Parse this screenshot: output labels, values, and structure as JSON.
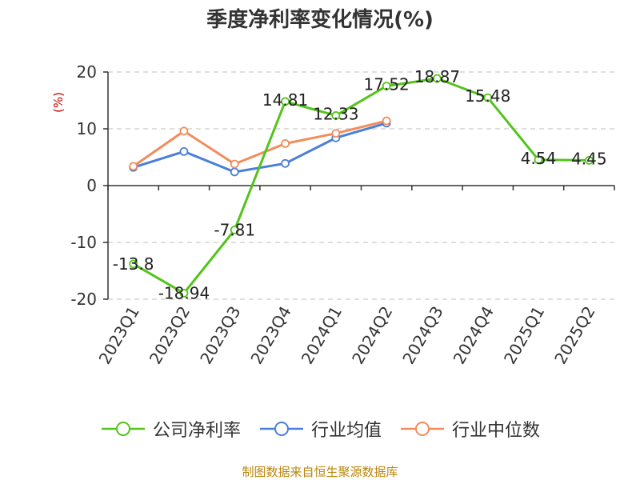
{
  "chart_data": {
    "type": "line",
    "title": "季度净利率变化情况(%)",
    "ylabel": "(%)",
    "categories": [
      "2023Q1",
      "2023Q2",
      "2023Q3",
      "2023Q4",
      "2024Q1",
      "2024Q2",
      "2024Q3",
      "2024Q4",
      "2025Q1",
      "2025Q2"
    ],
    "y_ticks": [
      "20",
      "10",
      "0",
      "-10",
      "-20"
    ],
    "ylim": [
      -20,
      20
    ],
    "grid": true,
    "legend_placement": "bottom",
    "series": [
      {
        "name": "公司净利率",
        "color": "#52c41a",
        "values": [
          -13.8,
          -18.94,
          -7.81,
          14.81,
          12.33,
          17.52,
          18.87,
          15.48,
          4.54,
          4.45
        ],
        "labels": [
          "-13.8",
          "-18.94",
          "-7.81",
          "14.81",
          "12.33",
          "17.52",
          "18.87",
          "15.48",
          "4.54",
          "4.45"
        ]
      },
      {
        "name": "行业均值",
        "color": "#4a7fd9",
        "values": [
          3.2,
          6.0,
          2.4,
          3.9,
          8.4,
          11.0,
          null,
          null,
          null,
          null
        ]
      },
      {
        "name": "行业中位数",
        "color": "#f28c5a",
        "values": [
          3.4,
          9.6,
          3.8,
          7.4,
          9.2,
          11.4,
          null,
          null,
          null,
          null
        ]
      }
    ]
  },
  "source": "制图数据来自恒生聚源数据库"
}
